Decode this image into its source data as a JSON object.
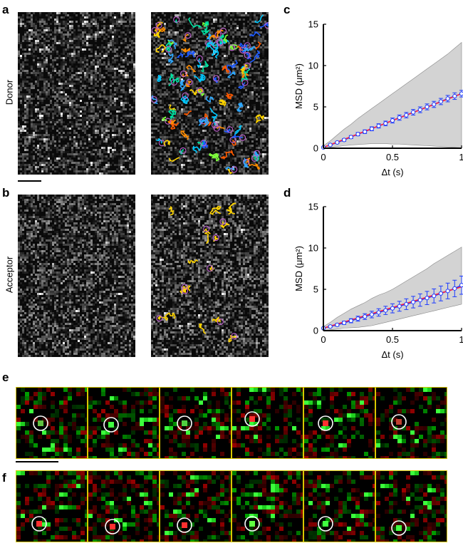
{
  "panels": {
    "a": {
      "label": "a",
      "row_label": "Donor"
    },
    "b": {
      "label": "b",
      "row_label": "Acceptor"
    },
    "c": {
      "label": "c"
    },
    "d": {
      "label": "d"
    },
    "e": {
      "label": "e"
    },
    "f": {
      "label": "f"
    }
  },
  "colors": {
    "track_palette": [
      "#ff8c00",
      "#00c8ff",
      "#1e5bff",
      "#7fff3c",
      "#ffd400",
      "#00e0a0",
      "#ff5a00",
      "#2ea8ff"
    ],
    "circle": "#c060d0",
    "acceptor_track": "#ffd400",
    "frame_border": "#d8c700",
    "shade": "#d3d3d3",
    "mean_line": "#1e3cff",
    "fit_line": "#ff2040"
  },
  "chart_data": [
    {
      "id": "c",
      "type": "line",
      "ylabel": "MSD (μm²)",
      "xlabel": "Δt (s)",
      "xlim": [
        0,
        1
      ],
      "ylim": [
        0,
        15
      ],
      "xticks": [
        "0",
        "0.5",
        "1"
      ],
      "yticks": [
        "0",
        "5",
        "10",
        "15"
      ],
      "x": [
        0,
        0.05,
        0.1,
        0.15,
        0.2,
        0.25,
        0.3,
        0.35,
        0.4,
        0.45,
        0.5,
        0.55,
        0.6,
        0.65,
        0.7,
        0.75,
        0.8,
        0.85,
        0.9,
        0.95,
        1.0
      ],
      "series": [
        {
          "values": [
            0.1,
            0.4,
            0.7,
            1.0,
            1.35,
            1.7,
            2.0,
            2.35,
            2.7,
            3.0,
            3.35,
            3.7,
            4.0,
            4.35,
            4.65,
            5.0,
            5.3,
            5.65,
            6.0,
            6.3,
            6.6
          ],
          "error": [
            0.05,
            0.1,
            0.12,
            0.15,
            0.18,
            0.2,
            0.22,
            0.24,
            0.26,
            0.28,
            0.3,
            0.32,
            0.33,
            0.34,
            0.35,
            0.36,
            0.37,
            0.38,
            0.39,
            0.4,
            0.4
          ]
        }
      ],
      "fit": {
        "x": [
          0,
          1
        ],
        "y": [
          0.1,
          6.6
        ]
      },
      "band_upper": [
        0.3,
        0.9,
        1.6,
        2.3,
        2.9,
        3.6,
        4.2,
        4.8,
        5.4,
        6.0,
        6.6,
        7.2,
        7.8,
        8.4,
        9.0,
        9.6,
        10.2,
        10.8,
        11.4,
        12.1,
        12.8
      ],
      "band_lower": [
        0.0,
        0.1,
        0.2,
        0.3,
        0.4,
        0.45,
        0.5,
        0.55,
        0.55,
        0.55,
        0.5,
        0.5,
        0.45,
        0.4,
        0.35,
        0.3,
        0.25,
        0.2,
        0.15,
        0.1,
        0.05
      ]
    },
    {
      "id": "d",
      "type": "line",
      "ylabel": "MSD (μm²)",
      "xlabel": "Δt (s)",
      "xlim": [
        0,
        1
      ],
      "ylim": [
        0,
        15
      ],
      "xticks": [
        "0",
        "0.5",
        "1"
      ],
      "yticks": [
        "0",
        "5",
        "10",
        "15"
      ],
      "x": [
        0,
        0.05,
        0.1,
        0.15,
        0.2,
        0.25,
        0.3,
        0.35,
        0.4,
        0.45,
        0.5,
        0.55,
        0.6,
        0.65,
        0.7,
        0.75,
        0.8,
        0.85,
        0.9,
        0.95,
        1.0
      ],
      "series": [
        {
          "values": [
            0.3,
            0.5,
            0.7,
            0.95,
            1.2,
            1.45,
            1.7,
            1.95,
            2.2,
            2.45,
            2.7,
            2.95,
            3.2,
            3.45,
            3.7,
            3.95,
            4.2,
            4.5,
            4.8,
            5.1,
            5.5
          ],
          "error": [
            0.05,
            0.1,
            0.15,
            0.2,
            0.25,
            0.3,
            0.35,
            0.4,
            0.45,
            0.5,
            0.55,
            0.6,
            0.65,
            0.7,
            0.75,
            0.8,
            0.85,
            0.9,
            0.95,
            1.0,
            1.1
          ]
        }
      ],
      "fit": {
        "x": [
          0,
          1
        ],
        "y": [
          0.3,
          5.3
        ]
      },
      "band_upper": [
        0.5,
        1.0,
        1.6,
        2.1,
        2.6,
        3.0,
        3.4,
        3.9,
        4.3,
        4.6,
        5.0,
        5.5,
        6.0,
        6.5,
        7.0,
        7.5,
        8.1,
        8.6,
        9.1,
        9.6,
        10.1
      ],
      "band_lower": [
        0.0,
        0.1,
        0.2,
        0.3,
        0.35,
        0.4,
        0.5,
        0.6,
        0.8,
        1.0,
        1.2,
        1.4,
        1.6,
        1.8,
        2.0,
        2.2,
        2.4,
        2.6,
        2.8,
        3.0,
        3.2
      ]
    }
  ]
}
